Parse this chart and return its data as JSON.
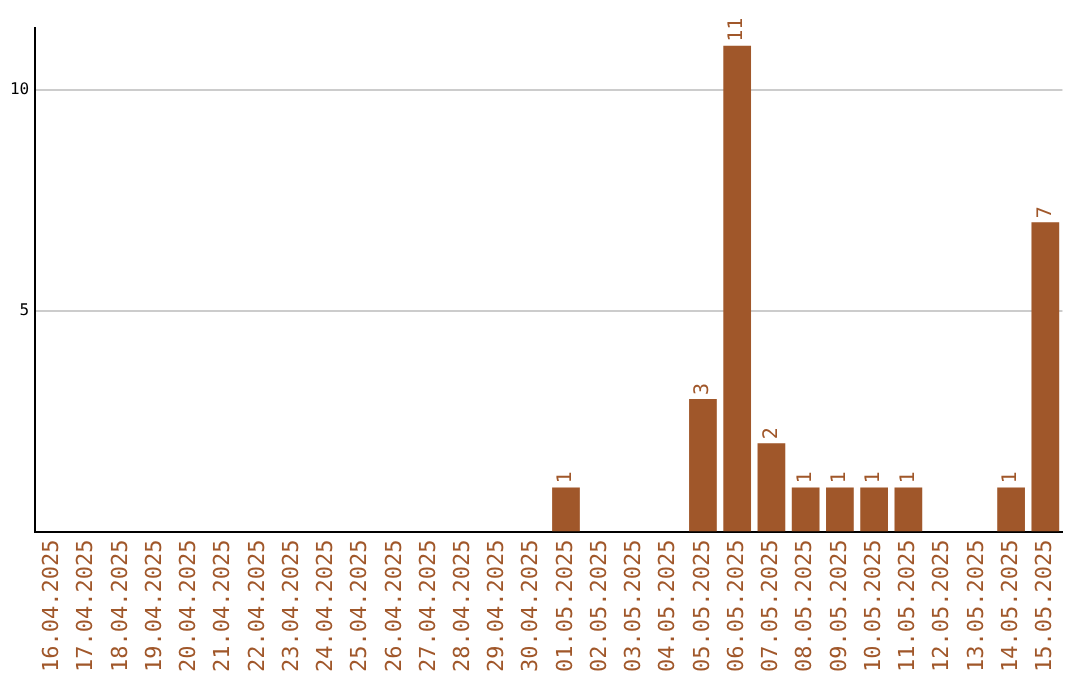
{
  "chart_data": {
    "type": "bar",
    "categories": [
      "16.04.2025",
      "17.04.2025",
      "18.04.2025",
      "19.04.2025",
      "20.04.2025",
      "21.04.2025",
      "22.04.2025",
      "23.04.2025",
      "24.04.2025",
      "25.04.2025",
      "26.04.2025",
      "27.04.2025",
      "28.04.2025",
      "29.04.2025",
      "30.04.2025",
      "01.05.2025",
      "02.05.2025",
      "03.05.2025",
      "04.05.2025",
      "05.05.2025",
      "06.05.2025",
      "07.05.2025",
      "08.05.2025",
      "09.05.2025",
      "10.05.2025",
      "11.05.2025",
      "12.05.2025",
      "13.05.2025",
      "14.05.2025",
      "15.05.2025"
    ],
    "values": [
      0,
      0,
      0,
      0,
      0,
      0,
      0,
      0,
      0,
      0,
      0,
      0,
      0,
      0,
      0,
      1,
      0,
      0,
      0,
      3,
      11,
      2,
      1,
      1,
      1,
      1,
      0,
      0,
      1,
      7
    ],
    "value_labels": [
      null,
      null,
      null,
      null,
      null,
      null,
      null,
      null,
      null,
      null,
      null,
      null,
      null,
      null,
      null,
      "1",
      null,
      null,
      null,
      "3",
      "11",
      "2",
      "1",
      "1",
      "1",
      "1",
      null,
      null,
      "1",
      "7"
    ],
    "color": "#a0572a",
    "ylim": [
      0,
      11.4
    ],
    "yticks": [
      5,
      10
    ],
    "grid": "y",
    "legend": false
  }
}
